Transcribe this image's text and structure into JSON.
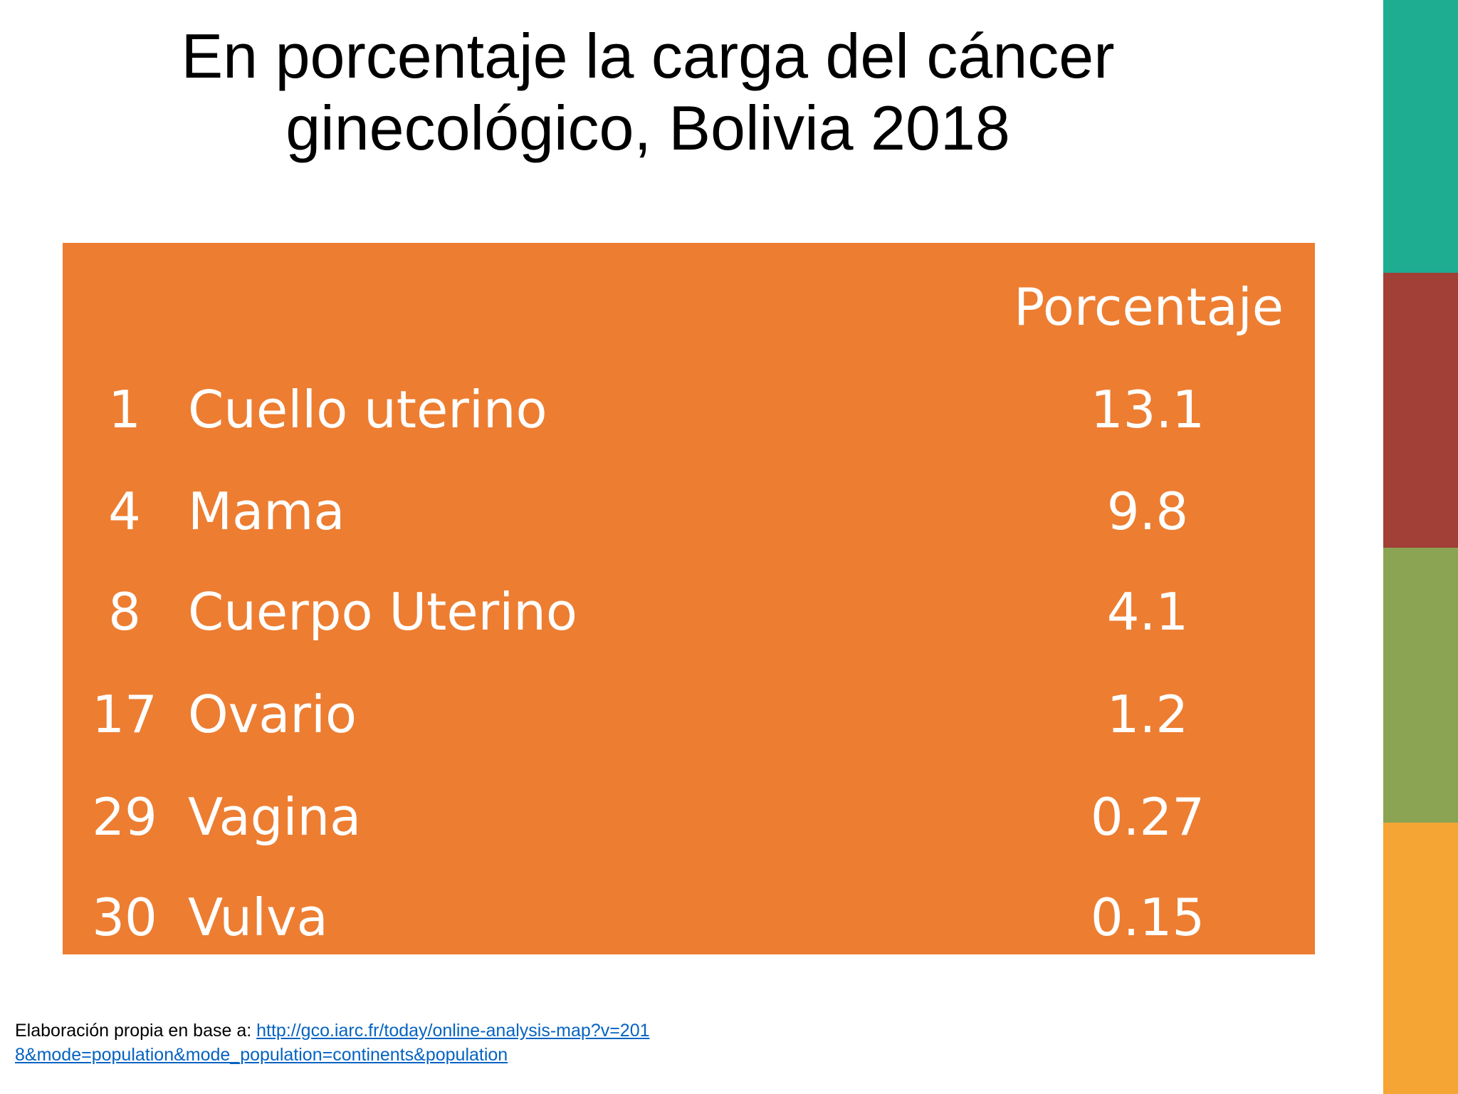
{
  "title": "En porcentaje la carga del cáncer ginecológico, Bolivia 2018",
  "table": {
    "header": "Porcentaje",
    "rows": [
      [
        1,
        "Cuello uterino",
        13.1
      ],
      [
        4,
        "Mama",
        9.8
      ],
      [
        8,
        "Cuerpo Uterino",
        4.1
      ],
      [
        17,
        "Ovario",
        1.2
      ],
      [
        29,
        "Vagina",
        0.27
      ],
      [
        30,
        "Vulva",
        0.15
      ]
    ]
  },
  "footer": {
    "text": "Elaboración propia en base a:",
    "link": "http://gco.iarc.fr/today/online-analysis-map?v=2018&mode=population&mode_population=continents&population"
  }
}
